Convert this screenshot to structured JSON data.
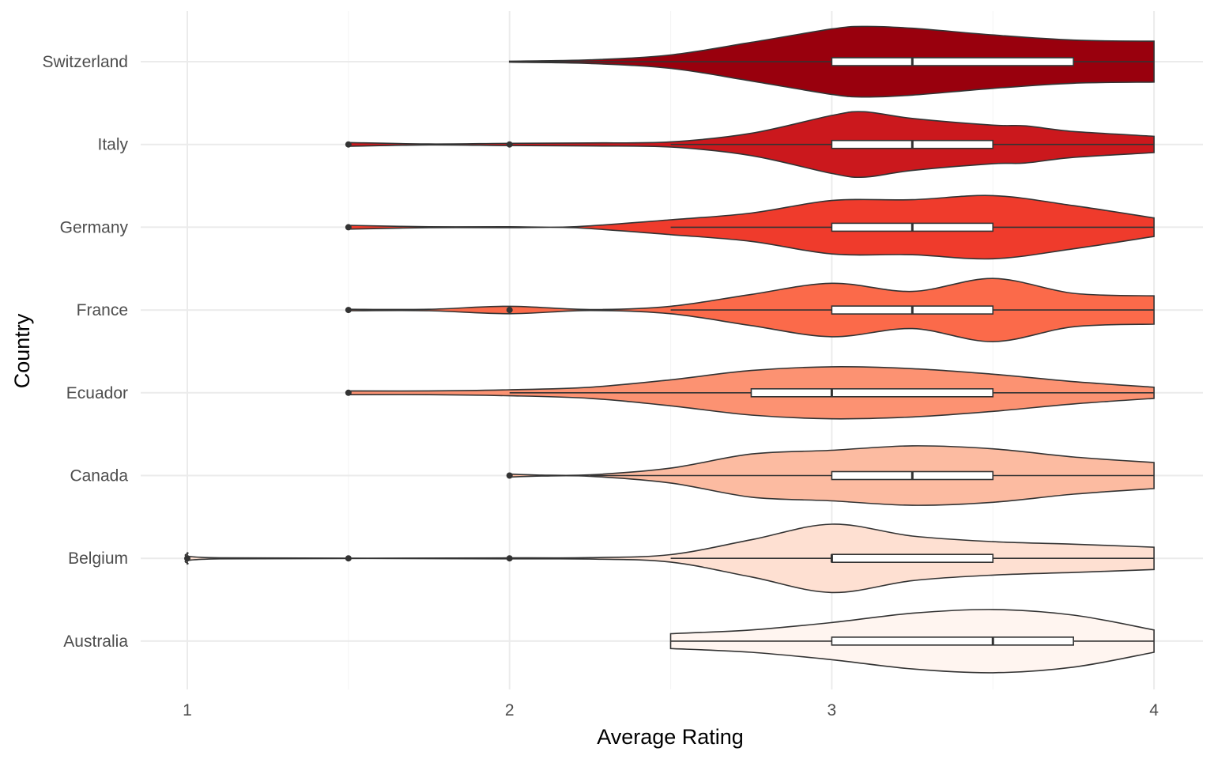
{
  "chart_data": {
    "type": "violin",
    "orientation": "horizontal",
    "xlabel": "Average Rating",
    "ylabel": "Country",
    "xlim": [
      1,
      4
    ],
    "x_ticks": [
      "1",
      "2",
      "3",
      "4"
    ],
    "grid": true,
    "legend": "none",
    "categories": [
      "Switzerland",
      "Italy",
      "Germany",
      "France",
      "Ecuador",
      "Canada",
      "Belgium",
      "Australia"
    ],
    "series": [
      {
        "category": "Switzerland",
        "fill": "#99000d",
        "min": 2.0,
        "q1": 3.0,
        "median": 3.25,
        "q3": 3.75,
        "max": 4.0,
        "whisker_low": 2.0,
        "whisker_high": 4.0,
        "outliers": [],
        "density": [
          [
            2.0,
            0.0
          ],
          [
            2.25,
            0.05
          ],
          [
            2.5,
            0.18
          ],
          [
            2.75,
            0.52
          ],
          [
            3.0,
            0.88
          ],
          [
            3.1,
            0.95
          ],
          [
            3.25,
            0.9
          ],
          [
            3.5,
            0.72
          ],
          [
            3.75,
            0.58
          ],
          [
            4.0,
            0.55
          ]
        ]
      },
      {
        "category": "Italy",
        "fill": "#cb181d",
        "min": 1.5,
        "q1": 3.0,
        "median": 3.25,
        "q3": 3.5,
        "max": 4.0,
        "whisker_low": 2.5,
        "whisker_high": 4.0,
        "outliers": [
          1.5,
          2.0
        ],
        "density": [
          [
            1.5,
            0.05
          ],
          [
            1.75,
            0.0
          ],
          [
            2.0,
            0.03
          ],
          [
            2.25,
            0.04
          ],
          [
            2.5,
            0.07
          ],
          [
            2.75,
            0.3
          ],
          [
            3.0,
            0.78
          ],
          [
            3.1,
            0.88
          ],
          [
            3.25,
            0.7
          ],
          [
            3.5,
            0.52
          ],
          [
            3.6,
            0.5
          ],
          [
            3.75,
            0.35
          ],
          [
            4.0,
            0.22
          ]
        ]
      },
      {
        "category": "Germany",
        "fill": "#ef3b2c",
        "min": 1.5,
        "q1": 3.0,
        "median": 3.25,
        "q3": 3.5,
        "max": 4.0,
        "whisker_low": 2.5,
        "whisker_high": 4.0,
        "outliers": [
          1.5
        ],
        "density": [
          [
            1.5,
            0.05
          ],
          [
            1.75,
            0.0
          ],
          [
            2.0,
            0.0
          ],
          [
            2.2,
            0.0
          ],
          [
            2.5,
            0.2
          ],
          [
            2.75,
            0.38
          ],
          [
            3.0,
            0.72
          ],
          [
            3.25,
            0.74
          ],
          [
            3.5,
            0.85
          ],
          [
            3.75,
            0.58
          ],
          [
            4.0,
            0.25
          ]
        ]
      },
      {
        "category": "France",
        "fill": "#fb6a4a",
        "min": 1.5,
        "q1": 3.0,
        "median": 3.25,
        "q3": 3.5,
        "max": 4.0,
        "whisker_low": 2.5,
        "whisker_high": 4.0,
        "outliers": [
          1.5,
          2.0
        ],
        "density": [
          [
            1.5,
            0.02
          ],
          [
            1.75,
            0.02
          ],
          [
            2.0,
            0.1
          ],
          [
            2.25,
            0.0
          ],
          [
            2.5,
            0.1
          ],
          [
            2.75,
            0.42
          ],
          [
            3.0,
            0.72
          ],
          [
            3.25,
            0.5
          ],
          [
            3.5,
            0.85
          ],
          [
            3.75,
            0.45
          ],
          [
            4.0,
            0.38
          ]
        ]
      },
      {
        "category": "Ecuador",
        "fill": "#fc9272",
        "min": 1.5,
        "q1": 2.75,
        "median": 3.0,
        "q3": 3.5,
        "max": 4.0,
        "whisker_low": 2.0,
        "whisker_high": 4.0,
        "outliers": [
          1.5
        ],
        "density": [
          [
            1.5,
            0.05
          ],
          [
            1.75,
            0.05
          ],
          [
            2.0,
            0.08
          ],
          [
            2.25,
            0.15
          ],
          [
            2.5,
            0.35
          ],
          [
            2.75,
            0.6
          ],
          [
            3.0,
            0.7
          ],
          [
            3.25,
            0.65
          ],
          [
            3.5,
            0.5
          ],
          [
            3.75,
            0.3
          ],
          [
            4.0,
            0.15
          ]
        ]
      },
      {
        "category": "Canada",
        "fill": "#fcbba1",
        "min": 2.0,
        "q1": 3.0,
        "median": 3.25,
        "q3": 3.5,
        "max": 4.0,
        "whisker_low": 2.25,
        "whisker_high": 4.0,
        "outliers": [
          2.0
        ],
        "density": [
          [
            2.0,
            0.04
          ],
          [
            2.1,
            0.0
          ],
          [
            2.25,
            0.02
          ],
          [
            2.5,
            0.2
          ],
          [
            2.75,
            0.58
          ],
          [
            3.0,
            0.68
          ],
          [
            3.25,
            0.8
          ],
          [
            3.5,
            0.72
          ],
          [
            3.75,
            0.5
          ],
          [
            4.0,
            0.35
          ]
        ]
      },
      {
        "category": "Belgium",
        "fill": "#fee0d2",
        "min": 1.0,
        "q1": 3.0,
        "median": 3.0,
        "q3": 3.5,
        "max": 4.0,
        "whisker_low": 2.5,
        "whisker_high": 4.0,
        "outliers": [
          1.0,
          1.5,
          2.0
        ],
        "density": [
          [
            1.0,
            0.15
          ],
          [
            1.1,
            0.0
          ],
          [
            2.0,
            0.0
          ],
          [
            2.25,
            0.02
          ],
          [
            2.5,
            0.1
          ],
          [
            2.75,
            0.5
          ],
          [
            3.0,
            0.92
          ],
          [
            3.25,
            0.6
          ],
          [
            3.5,
            0.45
          ],
          [
            3.75,
            0.38
          ],
          [
            4.0,
            0.3
          ]
        ]
      },
      {
        "category": "Australia",
        "fill": "#fff5f0",
        "min": 2.5,
        "q1": 3.0,
        "median": 3.5,
        "q3": 3.75,
        "max": 4.0,
        "whisker_low": 2.5,
        "whisker_high": 4.0,
        "outliers": [],
        "density": [
          [
            2.5,
            0.2
          ],
          [
            2.75,
            0.3
          ],
          [
            3.0,
            0.5
          ],
          [
            3.25,
            0.75
          ],
          [
            3.5,
            0.85
          ],
          [
            3.75,
            0.7
          ],
          [
            4.0,
            0.3
          ]
        ]
      }
    ]
  }
}
